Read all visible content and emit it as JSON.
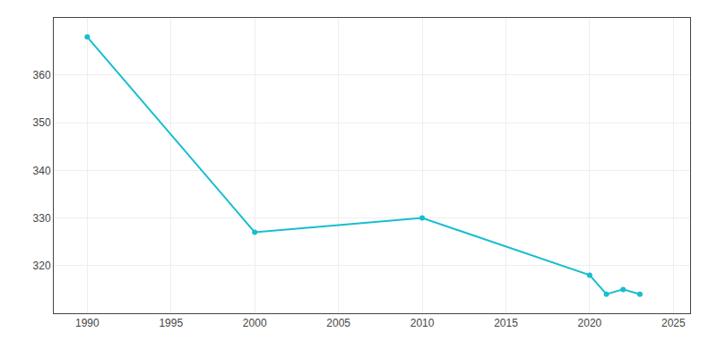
{
  "chart_data": {
    "type": "line",
    "x": [
      1990,
      2000,
      2010,
      2020,
      2021,
      2022,
      2023
    ],
    "values": [
      368,
      327,
      330,
      318,
      314,
      315,
      314
    ],
    "color": "#17becf",
    "marker": "o",
    "xlim": [
      1988,
      2026
    ],
    "ylim": [
      310,
      372
    ],
    "xticks": [
      1990,
      1995,
      2000,
      2005,
      2010,
      2015,
      2020,
      2025
    ],
    "yticks": [
      320,
      330,
      340,
      350,
      360
    ],
    "grid": true
  }
}
